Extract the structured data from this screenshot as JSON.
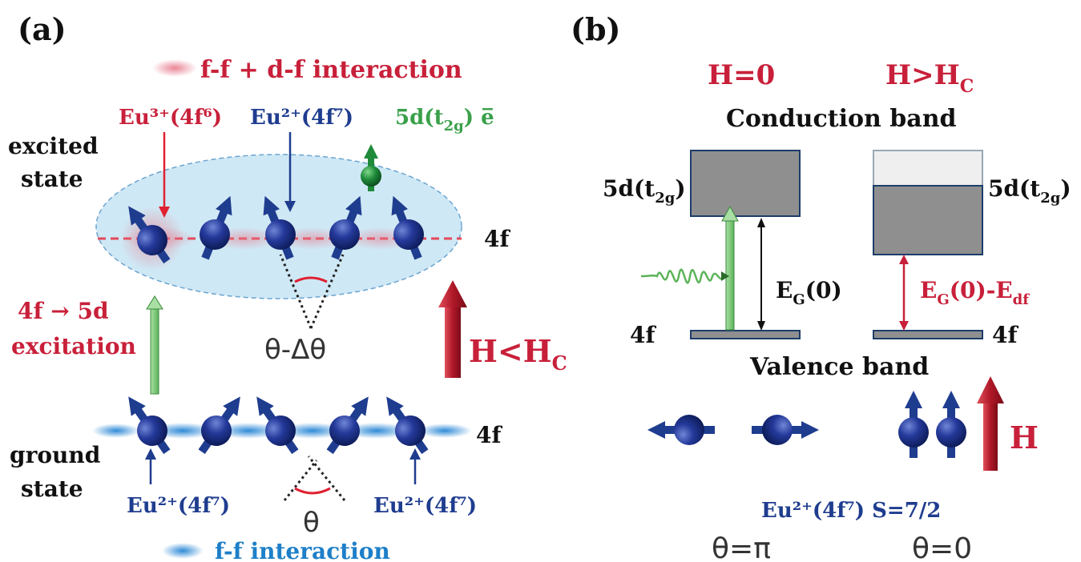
{
  "panel_a": {
    "label": "(a)",
    "legend_top": "f-f + d-f interaction",
    "excited_state_line1": "excited",
    "excited_state_line2": "state",
    "ground_state_line1": "ground",
    "ground_state_line2": "state",
    "eu3_label": "Eu³⁺(4f⁶)",
    "eu2_excited_label": "Eu²⁺(4f⁷)",
    "d_electron_label": "5d(t",
    "d_electron_sub": "2g",
    "d_electron_tail": ") e̅",
    "level_4f_excited": "4f",
    "level_4f_ground": "4f",
    "excitation_line1": "4f → 5d",
    "excitation_line2": "excitation",
    "angle_excited": "θ-Δθ",
    "angle_ground": "θ",
    "field_label": "H<H",
    "field_sub": "C",
    "eu2_ground_left": "Eu²⁺(4f⁷)",
    "eu2_ground_right": "Eu²⁺(4f⁷)",
    "legend_bottom": "f-f interaction"
  },
  "panel_b": {
    "label": "(b)",
    "h_zero": "H=0",
    "h_gt": "H>H",
    "h_gt_sub": "C",
    "conduction_band": "Conduction band",
    "valence_band": "Valence band",
    "d_left": "5d(t",
    "d_left_sub": "2g",
    "d_left_tail": ")",
    "d_right": "5d(t",
    "d_right_sub": "2g",
    "d_right_tail": ")",
    "gap_left": "E",
    "gap_left_sub": "G",
    "gap_left_tail": "(0)",
    "gap_right": "E",
    "gap_right_sub": "G",
    "gap_right_mid": "(0)-E",
    "gap_right_sub2": "df",
    "f_left": "4f",
    "f_right": "4f",
    "field_H": "H",
    "spin_label": "Eu²⁺(4f⁷) S=7/2",
    "theta_pi": "θ=π",
    "theta_zero": "θ=0"
  },
  "colors": {
    "red": "#c8203a",
    "blue": "#1f3d8f",
    "green": "#3aa04a",
    "light_blue": "#1e7fc8",
    "band_gray": "#8f8f8f",
    "band_border": "#1d3d6b"
  }
}
